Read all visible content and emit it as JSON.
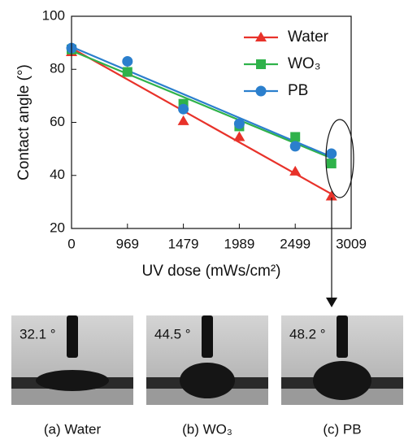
{
  "chart_data": {
    "type": "line",
    "x": [
      0,
      969,
      1479,
      1989,
      2499,
      2829
    ],
    "xlim": [
      0,
      3009
    ],
    "xticks": [
      0,
      969,
      1479,
      1989,
      2499,
      3009
    ],
    "ylim": [
      20,
      100
    ],
    "yticks": [
      20,
      40,
      60,
      80,
      100
    ],
    "x_label": "UV dose (mWs/cm²)",
    "y_label": "Contact angle (°)",
    "legend": "top-right",
    "series": [
      {
        "name": "Water",
        "color": "#e8322a",
        "marker": "triangle",
        "values": [
          86.5,
          79,
          60.5,
          54.5,
          41.5,
          32.1
        ],
        "fit": [
          88,
          33
        ]
      },
      {
        "name": "WO₃",
        "color": "#2fb24a",
        "marker": "square",
        "values": [
          87.5,
          79,
          67,
          58.5,
          54.5,
          44.5
        ],
        "fit": [
          87,
          46.5
        ]
      },
      {
        "name": "PB",
        "color": "#2b7fcd",
        "marker": "circle",
        "values": [
          88,
          83,
          65,
          59.5,
          51,
          48.2
        ],
        "fit": [
          88.5,
          47
        ]
      }
    ]
  },
  "panels": [
    {
      "angle_label": "32.1 °",
      "caption": "(a) Water"
    },
    {
      "angle_label": "44.5 °",
      "caption": "(b) WO₃"
    },
    {
      "angle_label": "48.2 °",
      "caption": "(c) PB"
    }
  ]
}
